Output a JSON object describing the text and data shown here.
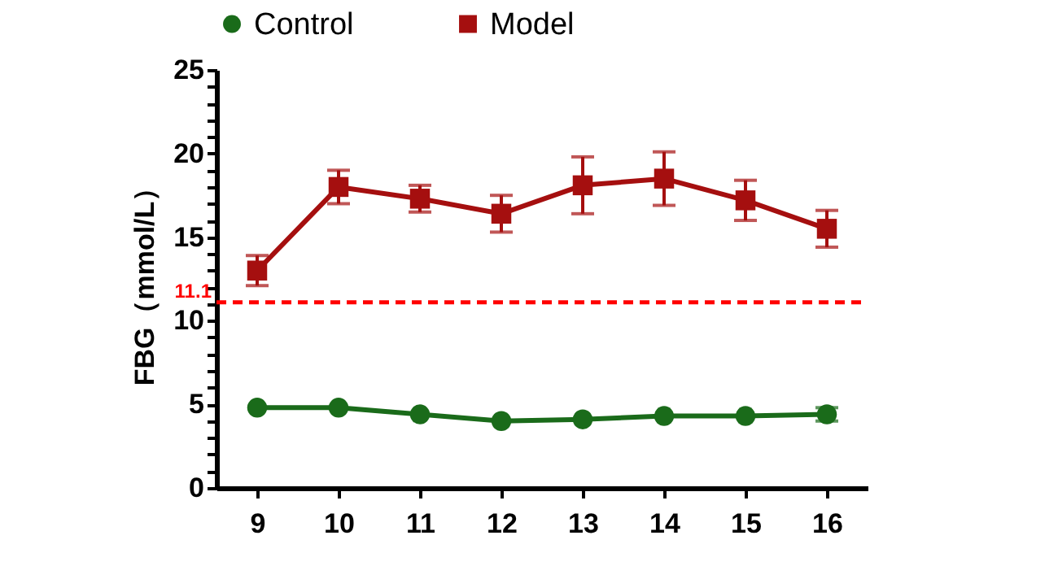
{
  "chart_data": {
    "type": "line",
    "ylabel": "FBG（mmol/L）",
    "categories": [
      "9",
      "10",
      "11",
      "12",
      "13",
      "14",
      "15",
      "16"
    ],
    "series": [
      {
        "name": "Control",
        "color": "#1a6b1a",
        "marker": "circle",
        "values": [
          4.8,
          4.8,
          4.4,
          4.0,
          4.1,
          4.3,
          4.3,
          4.4
        ],
        "errors": [
          null,
          null,
          null,
          null,
          null,
          null,
          null,
          0.4
        ]
      },
      {
        "name": "Model",
        "color": "#a50f0f",
        "marker": "square",
        "values": [
          13.0,
          18.0,
          17.3,
          16.4,
          18.1,
          18.5,
          17.2,
          15.5
        ],
        "errors": [
          0.9,
          1.0,
          0.8,
          1.1,
          1.7,
          1.6,
          1.2,
          1.1
        ]
      }
    ],
    "ylim": [
      0,
      25
    ],
    "yticks": [
      0,
      {
        "value": 1,
        "label": null
      },
      {
        "value": 2,
        "label": null
      },
      {
        "value": 3,
        "label": null
      },
      {
        "value": 4,
        "label": null
      },
      5,
      {
        "value": 6,
        "label": null
      },
      {
        "value": 7,
        "label": null
      },
      {
        "value": 8,
        "label": null
      },
      {
        "value": 9,
        "label": null
      },
      10,
      {
        "value": 11,
        "label": null
      },
      {
        "value": 12,
        "label": null
      },
      {
        "value": 13,
        "label": null
      },
      {
        "value": 14,
        "label": null
      },
      15,
      {
        "value": 16,
        "label": null
      },
      {
        "value": 17,
        "label": null
      },
      {
        "value": 18,
        "label": null
      },
      {
        "value": 19,
        "label": null
      },
      20,
      {
        "value": 21,
        "label": null
      },
      {
        "value": 22,
        "label": null
      },
      {
        "value": 23,
        "label": null
      },
      {
        "value": 24,
        "label": null
      },
      25
    ],
    "ref_lines": [
      {
        "axis": "y",
        "value": 11.1,
        "label": "11.1",
        "color": "#ff0000",
        "line_style": "dashed"
      }
    ],
    "grid": false,
    "legend": "top",
    "line_style": "solid"
  }
}
